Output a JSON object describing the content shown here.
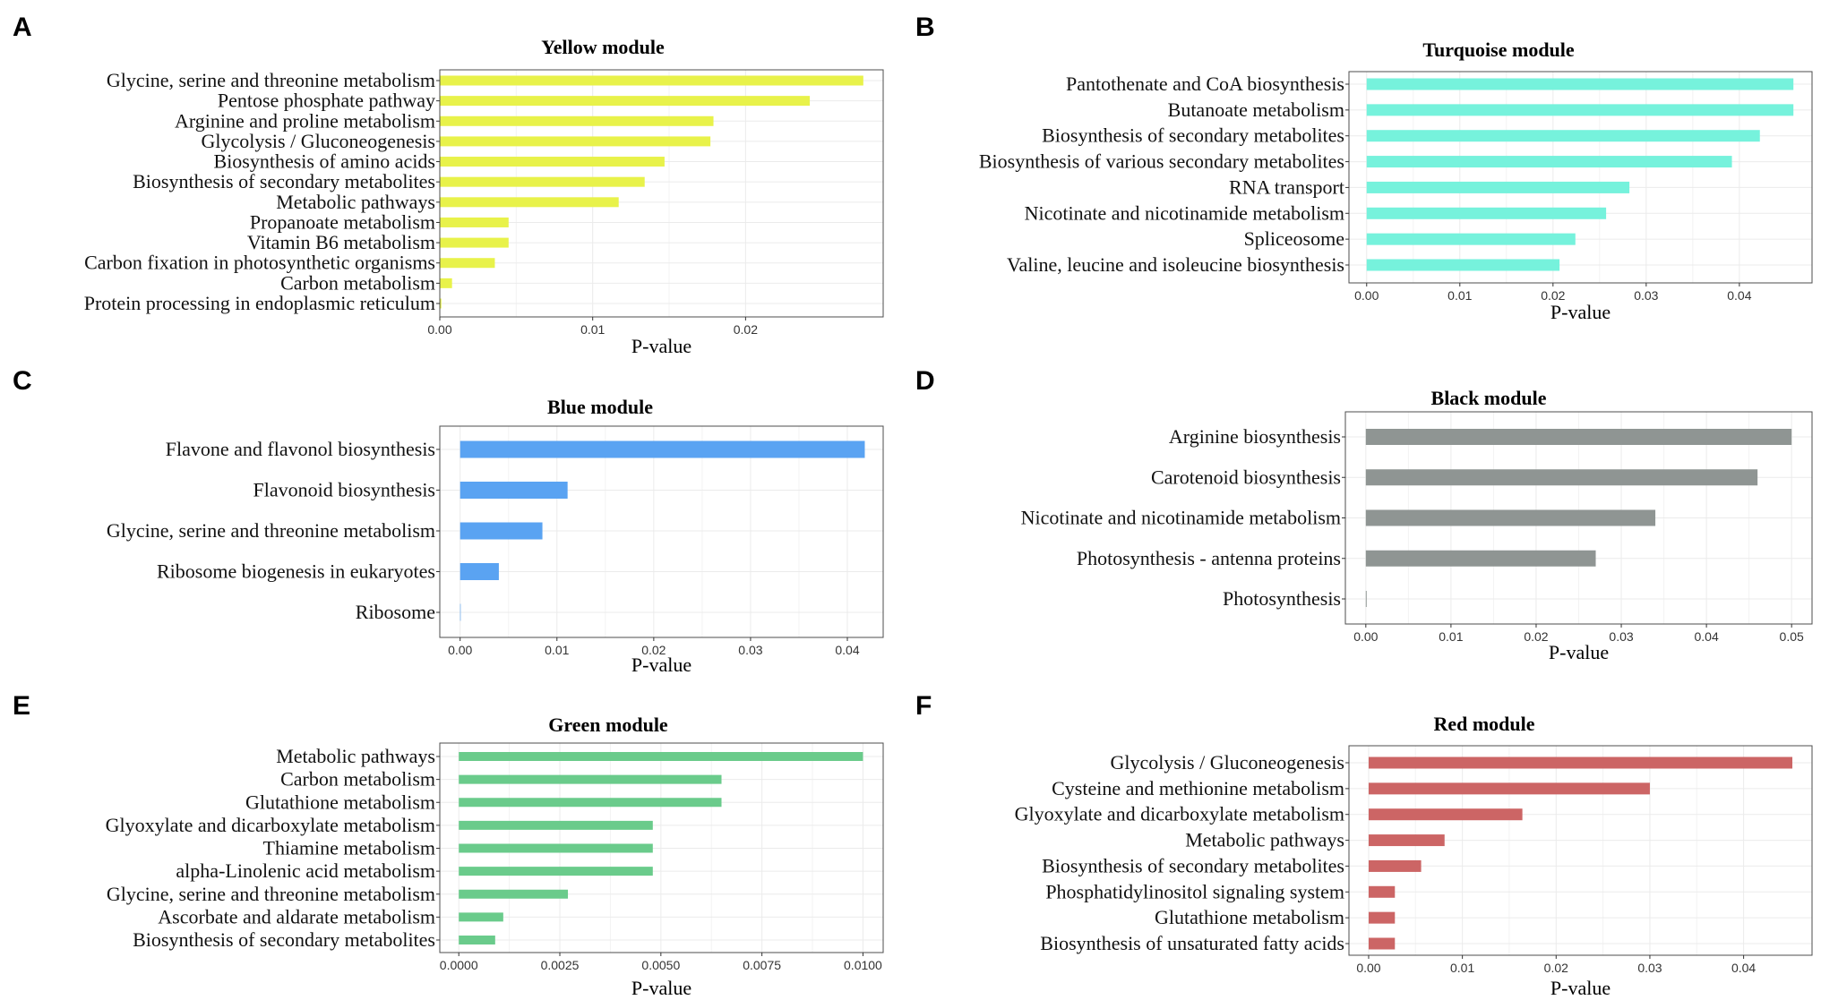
{
  "chart_data": [
    {
      "letter": "A",
      "type": "bar",
      "orientation": "horizontal",
      "title": "Yellow module",
      "xlabel": "P-value",
      "ylabel": "",
      "color": "#e8f24a",
      "xlim": [
        0,
        0.029
      ],
      "ticks": [
        0.0,
        0.01,
        0.02
      ],
      "tick_labels": [
        "0.00",
        "0.01",
        "0.02"
      ],
      "grid": true,
      "categories": [
        "Glycine, serine and threonine metabolism",
        "Pentose phosphate pathway",
        "Arginine and proline metabolism",
        "Glycolysis / Gluconeogenesis",
        "Biosynthesis of amino acids",
        "Biosynthesis of secondary metabolites",
        "Metabolic pathways",
        "Propanoate metabolism",
        "Vitamin B6 metabolism",
        "Carbon fixation in photosynthetic organisms",
        "Carbon metabolism",
        "Protein processing in endoplasmic reticulum"
      ],
      "values": [
        0.0277,
        0.0242,
        0.0179,
        0.0177,
        0.0147,
        0.0134,
        0.0117,
        0.0045,
        0.0045,
        0.0036,
        0.0008,
        0.0001
      ]
    },
    {
      "letter": "B",
      "type": "bar",
      "orientation": "horizontal",
      "title": "Turquoise module",
      "xlabel": "P-value",
      "ylabel": "",
      "color": "#76f2dc",
      "xlim": [
        -0.0019,
        0.0478
      ],
      "ticks": [
        0.0,
        0.01,
        0.02,
        0.03,
        0.04
      ],
      "tick_labels": [
        "0.00",
        "0.01",
        "0.02",
        "0.03",
        "0.04"
      ],
      "grid": true,
      "categories": [
        "Pantothenate and CoA biosynthesis",
        "Butanoate metabolism",
        "Biosynthesis of secondary metabolites",
        "Biosynthesis of various secondary metabolites",
        "RNA transport",
        "Nicotinate and nicotinamide metabolism",
        "Spliceosome",
        "Valine, leucine and isoleucine biosynthesis"
      ],
      "values": [
        0.0458,
        0.0458,
        0.0422,
        0.0392,
        0.0282,
        0.0257,
        0.0224,
        0.0207
      ]
    },
    {
      "letter": "C",
      "type": "bar",
      "orientation": "horizontal",
      "title": "Blue module",
      "xlabel": "P-value",
      "ylabel": "",
      "color": "#5aa3f2",
      "xlim": [
        -0.0021,
        0.0437
      ],
      "ticks": [
        0.0,
        0.01,
        0.02,
        0.03,
        0.04
      ],
      "tick_labels": [
        "0.00",
        "0.01",
        "0.02",
        "0.03",
        "0.04"
      ],
      "grid": true,
      "categories": [
        "Flavone and flavonol biosynthesis",
        "Flavonoid biosynthesis",
        "Glycine, serine and threonine metabolism",
        "Ribosome biogenesis in eukaryotes",
        "Ribosome"
      ],
      "values": [
        0.0418,
        0.0111,
        0.0085,
        0.004,
        0.0
      ]
    },
    {
      "letter": "D",
      "type": "bar",
      "orientation": "horizontal",
      "title": "Black module",
      "xlabel": "P-value",
      "ylabel": "",
      "color": "#8f9593",
      "xlim": [
        -0.0024,
        0.0524
      ],
      "ticks": [
        0.0,
        0.01,
        0.02,
        0.03,
        0.04,
        0.05
      ],
      "tick_labels": [
        "0.00",
        "0.01",
        "0.02",
        "0.03",
        "0.04",
        "0.05"
      ],
      "grid": true,
      "categories": [
        "Arginine biosynthesis",
        "Carotenoid biosynthesis",
        "Nicotinate and nicotinamide metabolism",
        "Photosynthesis - antenna proteins",
        "Photosynthesis"
      ],
      "values": [
        0.05,
        0.046,
        0.034,
        0.027,
        0.0001
      ]
    },
    {
      "letter": "E",
      "type": "bar",
      "orientation": "horizontal",
      "title": "Green module",
      "xlabel": "P-value",
      "ylabel": "",
      "color": "#6acb8b",
      "xlim": [
        -0.00047,
        0.0105
      ],
      "ticks": [
        0.0,
        0.0025,
        0.005,
        0.0075,
        0.01
      ],
      "tick_labels": [
        "0.0000",
        "0.0025",
        "0.0050",
        "0.0075",
        "0.0100"
      ],
      "grid": true,
      "categories": [
        "Metabolic pathways",
        "Carbon metabolism",
        "Glutathione metabolism",
        "Glyoxylate and dicarboxylate metabolism",
        "Thiamine metabolism",
        "alpha-Linolenic acid metabolism",
        "Glycine, serine and threonine metabolism",
        "Ascorbate and aldarate metabolism",
        "Biosynthesis of secondary metabolites"
      ],
      "values": [
        0.01,
        0.0065,
        0.0065,
        0.0048,
        0.0048,
        0.0048,
        0.0027,
        0.0011,
        0.0009
      ]
    },
    {
      "letter": "F",
      "type": "bar",
      "orientation": "horizontal",
      "title": "Red module",
      "xlabel": "P-value",
      "ylabel": "",
      "color": "#cc6565",
      "xlim": [
        -0.0021,
        0.0473
      ],
      "ticks": [
        0.0,
        0.01,
        0.02,
        0.03,
        0.04
      ],
      "tick_labels": [
        "0.00",
        "0.01",
        "0.02",
        "0.03",
        "0.04"
      ],
      "grid": true,
      "categories": [
        "Glycolysis / Gluconeogenesis",
        "Cysteine and methionine metabolism",
        "Glyoxylate and dicarboxylate metabolism",
        "Metabolic pathways",
        "Biosynthesis of secondary metabolites",
        "Phosphatidylinositol signaling system",
        "Glutathione metabolism",
        "Biosynthesis of unsaturated fatty acids"
      ],
      "values": [
        0.0452,
        0.03,
        0.0164,
        0.0081,
        0.0056,
        0.0028,
        0.0028,
        0.0028
      ]
    }
  ]
}
